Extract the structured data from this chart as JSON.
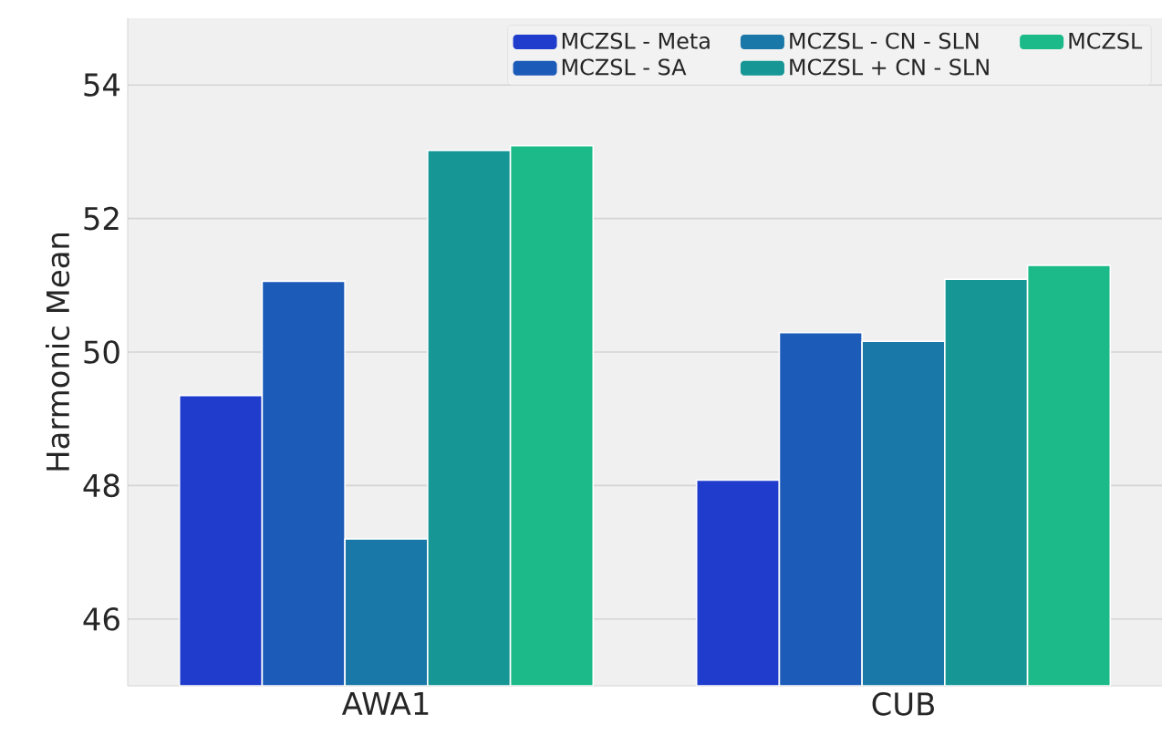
{
  "chart_data": {
    "type": "bar",
    "ylabel": "Harmonic Mean",
    "categories": [
      "AWA1",
      "CUB"
    ],
    "series": [
      {
        "name": "MCZSL - Meta",
        "color": "#1f3ccc",
        "values": [
          49.35,
          48.08
        ]
      },
      {
        "name": "MCZSL - SA",
        "color": "#1d5bb8",
        "values": [
          51.06,
          50.29
        ]
      },
      {
        "name": "MCZSL - CN - SLN",
        "color": "#1a78a8",
        "values": [
          47.2,
          50.16
        ]
      },
      {
        "name": "MCZSL + CN - SLN",
        "color": "#179696",
        "values": [
          53.02,
          51.09
        ]
      },
      {
        "name": "MCZSL",
        "color": "#1cba88",
        "values": [
          53.09,
          51.3
        ]
      }
    ],
    "ylim": [
      45,
      55
    ],
    "yticks": [
      46,
      48,
      50,
      52,
      54
    ],
    "grid": "y",
    "legend": "top right"
  }
}
